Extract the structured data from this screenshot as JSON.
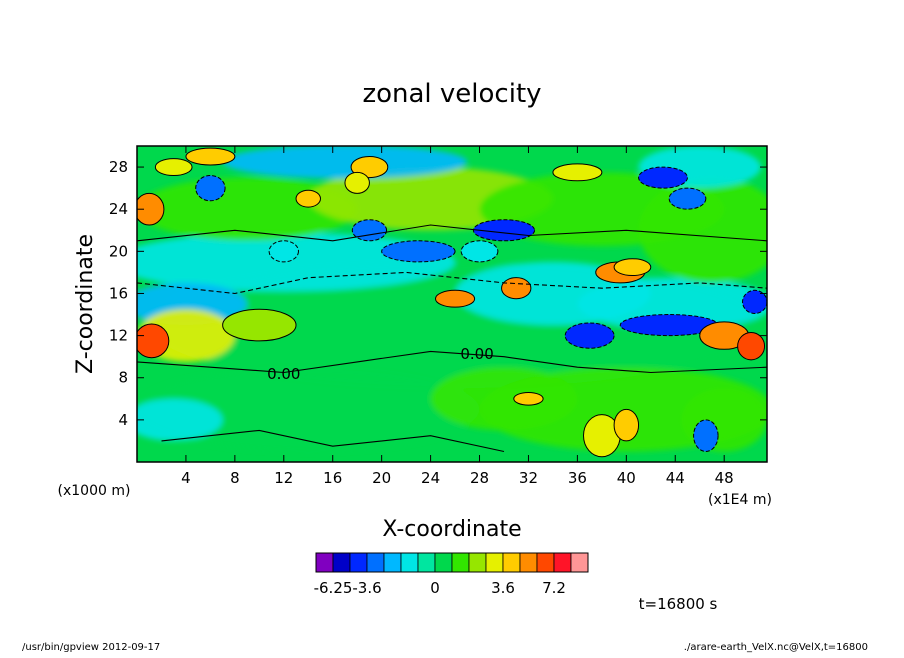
{
  "chart_data": {
    "type": "heatmap",
    "title": "zonal velocity",
    "xlabel": "X-coordinate",
    "ylabel": "Z-coordinate",
    "x_unit": "(x1E4 m)",
    "y_unit": "(x1000 m)",
    "xlim": [
      0,
      51.5
    ],
    "ylim": [
      0,
      30
    ],
    "x_ticks": [
      4,
      8,
      12,
      16,
      20,
      24,
      28,
      32,
      36,
      40,
      44,
      48
    ],
    "y_ticks": [
      4,
      8,
      12,
      16,
      20,
      24,
      28
    ],
    "contour_labels": [
      {
        "text": "0.00",
        "x": 12.0,
        "y": 7.9
      },
      {
        "text": "0.00",
        "x": 27.8,
        "y": 9.8
      }
    ],
    "colorbar": {
      "colors": [
        "#8000c0",
        "#0000c8",
        "#0028ff",
        "#0070ff",
        "#00b8ff",
        "#00e6e6",
        "#00e6a0",
        "#00d84c",
        "#32e600",
        "#96e600",
        "#e6f000",
        "#ffcc00",
        "#ff8c00",
        "#ff4800",
        "#ff1428",
        "#ff9696"
      ],
      "tick_labels": [
        "-6.25",
        "-3.6",
        "0",
        "3.6",
        "7.2"
      ]
    },
    "time_label": "t=16800 s"
  },
  "footer": {
    "left": "/usr/bin/gpview  2012-09-17",
    "right": "./arare-earth_VelX.nc@VelX,t=16800"
  }
}
